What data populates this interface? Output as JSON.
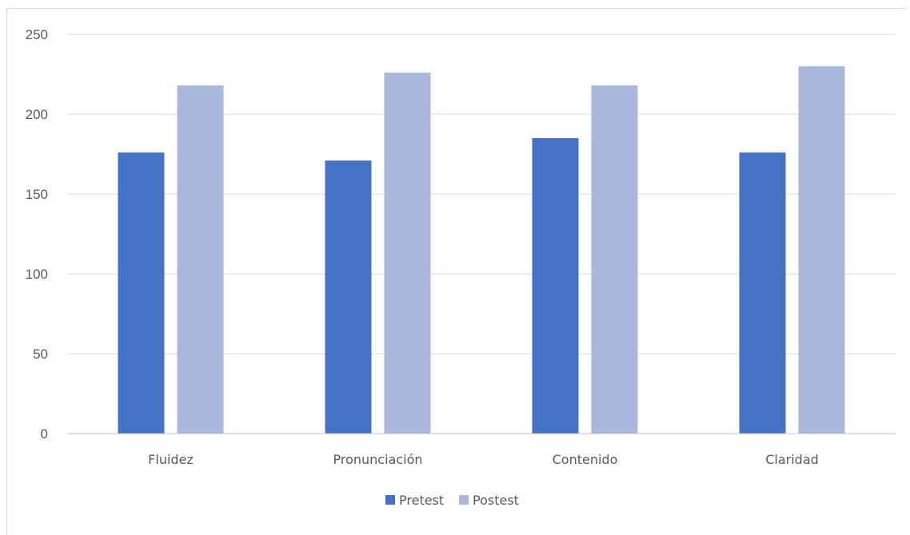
{
  "chart_data": {
    "type": "bar",
    "categories": [
      "Fluidez",
      "Pronunciación",
      "Contenido",
      "Claridad"
    ],
    "series": [
      {
        "name": "Pretest",
        "values": [
          176,
          171,
          185,
          176
        ],
        "color": "#4472c4"
      },
      {
        "name": "Postest",
        "values": [
          218,
          226,
          218,
          230
        ],
        "color": "#a9b8dc"
      }
    ],
    "ylim": [
      0,
      250
    ],
    "yticks": [
      0,
      50,
      100,
      150,
      200,
      250
    ],
    "grid": true,
    "legend": "bottom-center"
  }
}
